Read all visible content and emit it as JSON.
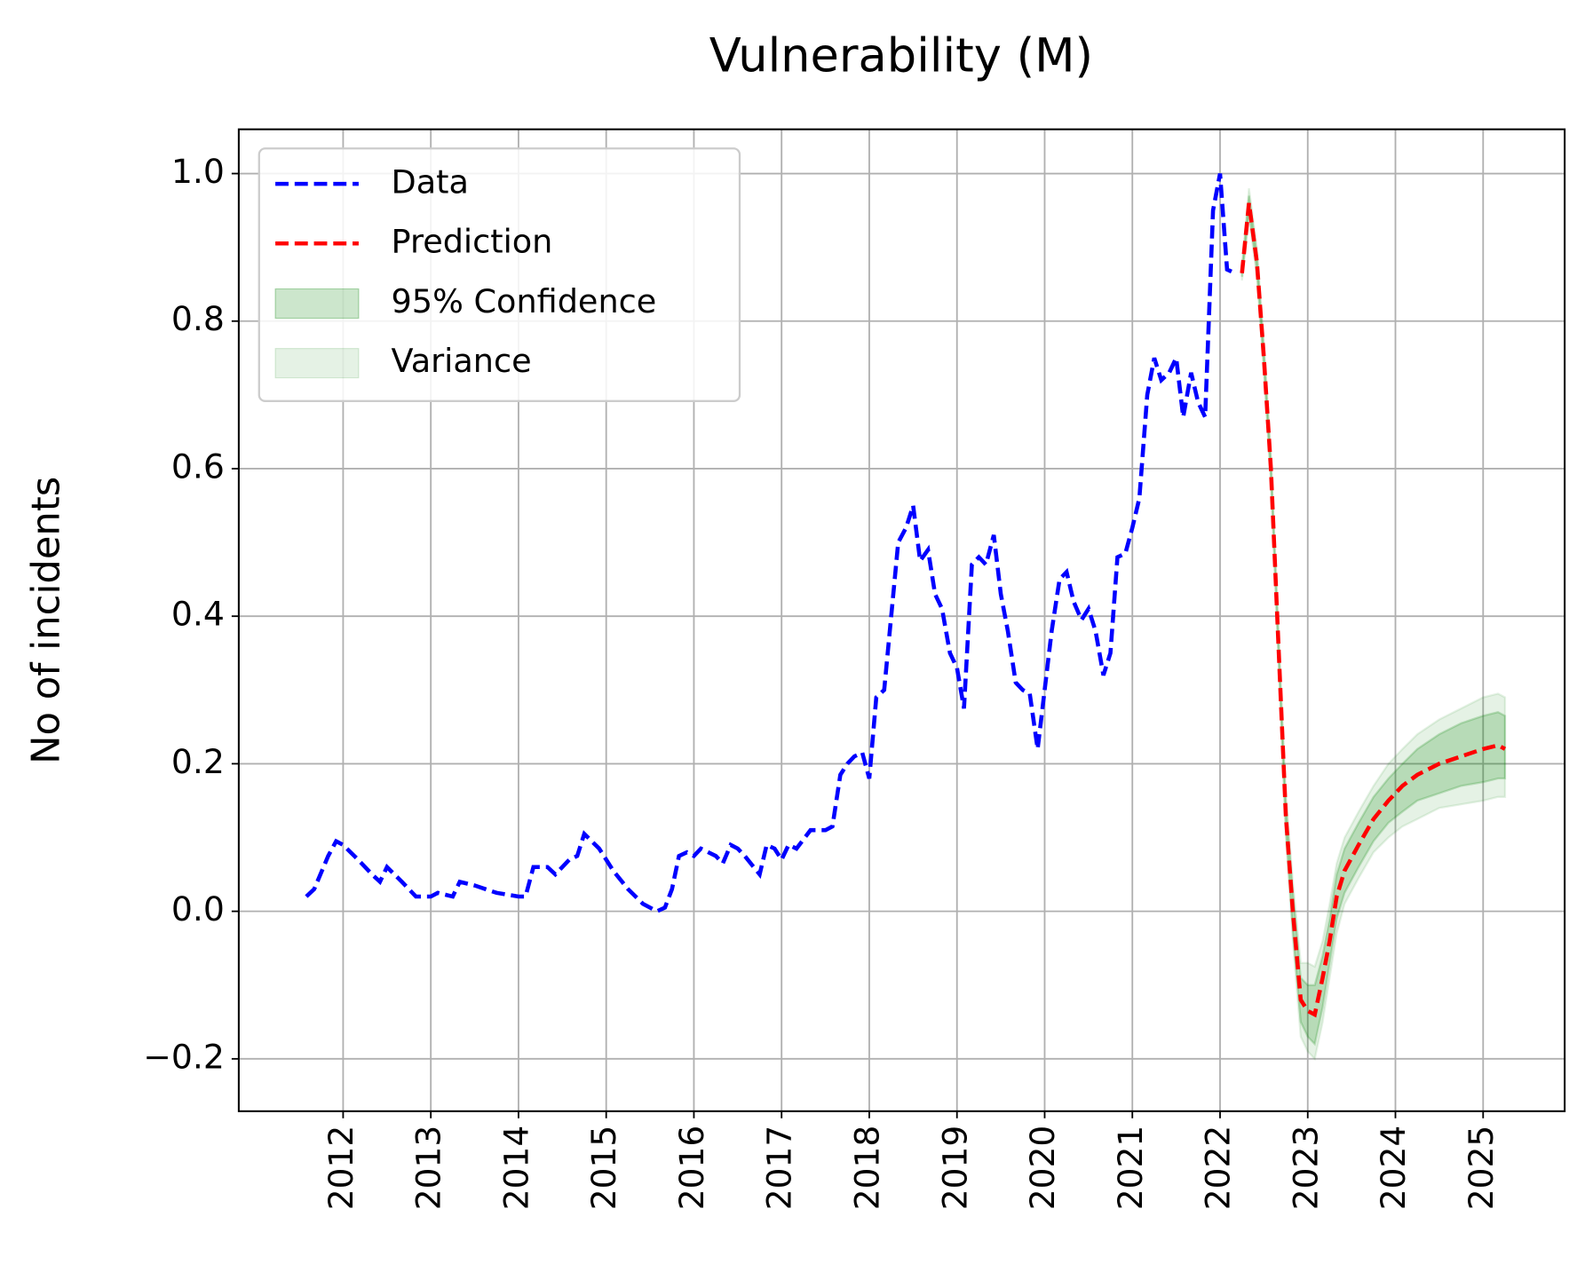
{
  "chart_data": {
    "type": "line",
    "title": "Vulnerability (M)",
    "y_label": "No of incidents",
    "xlim": [
      2010.81,
      2025.93
    ],
    "ylim": [
      -0.271,
      1.06
    ],
    "xticks": [
      2012,
      2013,
      2014,
      2015,
      2016,
      2017,
      2018,
      2019,
      2020,
      2021,
      2022,
      2023,
      2024,
      2025
    ],
    "yticks": [
      {
        "value": -0.2,
        "label": "−0.2"
      },
      {
        "value": 0,
        "label": "0.0"
      },
      0.2,
      0.4,
      0.6,
      0.8,
      {
        "value": 1,
        "label": "1.0"
      }
    ],
    "grid": true,
    "legend": "upper left",
    "series": [
      {
        "name": "Data",
        "color": "#0000ff",
        "style": "dashed",
        "x": [
          2011.58,
          2011.67,
          2011.83,
          2011.92,
          2012.0,
          2012.17,
          2012.33,
          2012.42,
          2012.5,
          2012.67,
          2012.83,
          2013.0,
          2013.08,
          2013.25,
          2013.33,
          2013.5,
          2013.75,
          2014.0,
          2014.08,
          2014.17,
          2014.33,
          2014.42,
          2014.58,
          2014.67,
          2014.75,
          2014.92,
          2015.08,
          2015.25,
          2015.42,
          2015.58,
          2015.67,
          2015.75,
          2015.83,
          2015.92,
          2016.0,
          2016.08,
          2016.25,
          2016.33,
          2016.42,
          2016.5,
          2016.58,
          2016.75,
          2016.83,
          2016.92,
          2017.0,
          2017.08,
          2017.17,
          2017.33,
          2017.5,
          2017.58,
          2017.67,
          2017.75,
          2017.83,
          2017.92,
          2018.0,
          2018.08,
          2018.17,
          2018.25,
          2018.33,
          2018.42,
          2018.5,
          2018.58,
          2018.67,
          2018.75,
          2018.83,
          2018.92,
          2019.0,
          2019.08,
          2019.17,
          2019.25,
          2019.33,
          2019.42,
          2019.5,
          2019.58,
          2019.67,
          2019.75,
          2019.83,
          2019.92,
          2020.0,
          2020.08,
          2020.17,
          2020.25,
          2020.33,
          2020.42,
          2020.5,
          2020.58,
          2020.67,
          2020.75,
          2020.83,
          2020.92,
          2021.0,
          2021.08,
          2021.17,
          2021.25,
          2021.33,
          2021.42,
          2021.5,
          2021.58,
          2021.67,
          2021.75,
          2021.83,
          2021.92,
          2022.0,
          2022.08,
          2022.17
        ],
        "values": [
          0.02,
          0.03,
          0.075,
          0.095,
          0.09,
          0.07,
          0.05,
          0.04,
          0.06,
          0.04,
          0.02,
          0.02,
          0.025,
          0.02,
          0.04,
          0.035,
          0.025,
          0.02,
          0.02,
          0.06,
          0.06,
          0.05,
          0.07,
          0.075,
          0.105,
          0.085,
          0.055,
          0.03,
          0.01,
          0.0,
          0.005,
          0.03,
          0.075,
          0.08,
          0.075,
          0.085,
          0.075,
          0.065,
          0.09,
          0.085,
          0.075,
          0.05,
          0.09,
          0.085,
          0.07,
          0.09,
          0.085,
          0.11,
          0.11,
          0.115,
          0.185,
          0.2,
          0.21,
          0.215,
          0.18,
          0.29,
          0.3,
          0.4,
          0.5,
          0.52,
          0.55,
          0.475,
          0.49,
          0.43,
          0.41,
          0.35,
          0.33,
          0.275,
          0.47,
          0.48,
          0.47,
          0.51,
          0.43,
          0.38,
          0.31,
          0.3,
          0.295,
          0.22,
          0.3,
          0.38,
          0.45,
          0.46,
          0.42,
          0.395,
          0.41,
          0.38,
          0.32,
          0.35,
          0.48,
          0.485,
          0.52,
          0.56,
          0.7,
          0.75,
          0.72,
          0.73,
          0.75,
          0.67,
          0.73,
          0.69,
          0.67,
          0.95,
          1.0,
          0.87,
          0.865
        ]
      },
      {
        "name": "Prediction",
        "color": "#ff0000",
        "style": "dashed",
        "x": [
          2022.25,
          2022.33,
          2022.42,
          2022.5,
          2022.58,
          2022.67,
          2022.75,
          2022.83,
          2022.92,
          2023.0,
          2023.08,
          2023.17,
          2023.25,
          2023.33,
          2023.42,
          2023.58,
          2023.75,
          2023.92,
          2024.08,
          2024.25,
          2024.5,
          2024.75,
          2025.0,
          2025.17,
          2025.25
        ],
        "values": [
          0.865,
          0.96,
          0.88,
          0.75,
          0.6,
          0.35,
          0.13,
          0.0,
          -0.12,
          -0.135,
          -0.14,
          -0.09,
          -0.04,
          0.02,
          0.055,
          0.09,
          0.125,
          0.15,
          0.17,
          0.185,
          0.2,
          0.21,
          0.22,
          0.225,
          0.22
        ]
      },
      {
        "name": "95% Confidence",
        "color": "#008000",
        "style": "band",
        "alpha": 0.2,
        "x": [
          2022.25,
          2022.33,
          2022.42,
          2022.5,
          2022.58,
          2022.67,
          2022.75,
          2022.83,
          2022.92,
          2023.0,
          2023.08,
          2023.17,
          2023.25,
          2023.33,
          2023.42,
          2023.58,
          2023.75,
          2023.92,
          2024.08,
          2024.25,
          2024.5,
          2024.75,
          2025.0,
          2025.17,
          2025.25
        ],
        "lower": [
          0.86,
          0.95,
          0.87,
          0.74,
          0.59,
          0.34,
          0.115,
          -0.025,
          -0.15,
          -0.17,
          -0.18,
          -0.13,
          -0.07,
          -0.01,
          0.025,
          0.06,
          0.095,
          0.12,
          0.135,
          0.15,
          0.16,
          0.17,
          0.175,
          0.18,
          0.18
        ],
        "upper": [
          0.87,
          0.97,
          0.89,
          0.76,
          0.61,
          0.36,
          0.145,
          0.025,
          -0.09,
          -0.1,
          -0.1,
          -0.06,
          -0.01,
          0.05,
          0.085,
          0.12,
          0.155,
          0.18,
          0.2,
          0.22,
          0.24,
          0.255,
          0.265,
          0.27,
          0.265
        ]
      },
      {
        "name": "Variance",
        "color": "#008000",
        "style": "band",
        "alpha": 0.1,
        "x": [
          2022.25,
          2022.33,
          2022.42,
          2022.5,
          2022.58,
          2022.67,
          2022.75,
          2022.83,
          2022.92,
          2023.0,
          2023.08,
          2023.17,
          2023.25,
          2023.33,
          2023.42,
          2023.58,
          2023.75,
          2023.92,
          2024.08,
          2024.25,
          2024.5,
          2024.75,
          2025.0,
          2025.17,
          2025.25
        ],
        "lower": [
          0.855,
          0.94,
          0.86,
          0.73,
          0.58,
          0.33,
          0.1,
          -0.04,
          -0.17,
          -0.19,
          -0.2,
          -0.15,
          -0.09,
          -0.03,
          0.01,
          0.045,
          0.08,
          0.1,
          0.115,
          0.125,
          0.14,
          0.145,
          0.15,
          0.155,
          0.155
        ],
        "upper": [
          0.875,
          0.98,
          0.9,
          0.77,
          0.62,
          0.37,
          0.16,
          0.04,
          -0.07,
          -0.07,
          -0.075,
          -0.04,
          0.01,
          0.065,
          0.1,
          0.135,
          0.17,
          0.2,
          0.22,
          0.24,
          0.26,
          0.275,
          0.29,
          0.295,
          0.29
        ]
      }
    ]
  }
}
